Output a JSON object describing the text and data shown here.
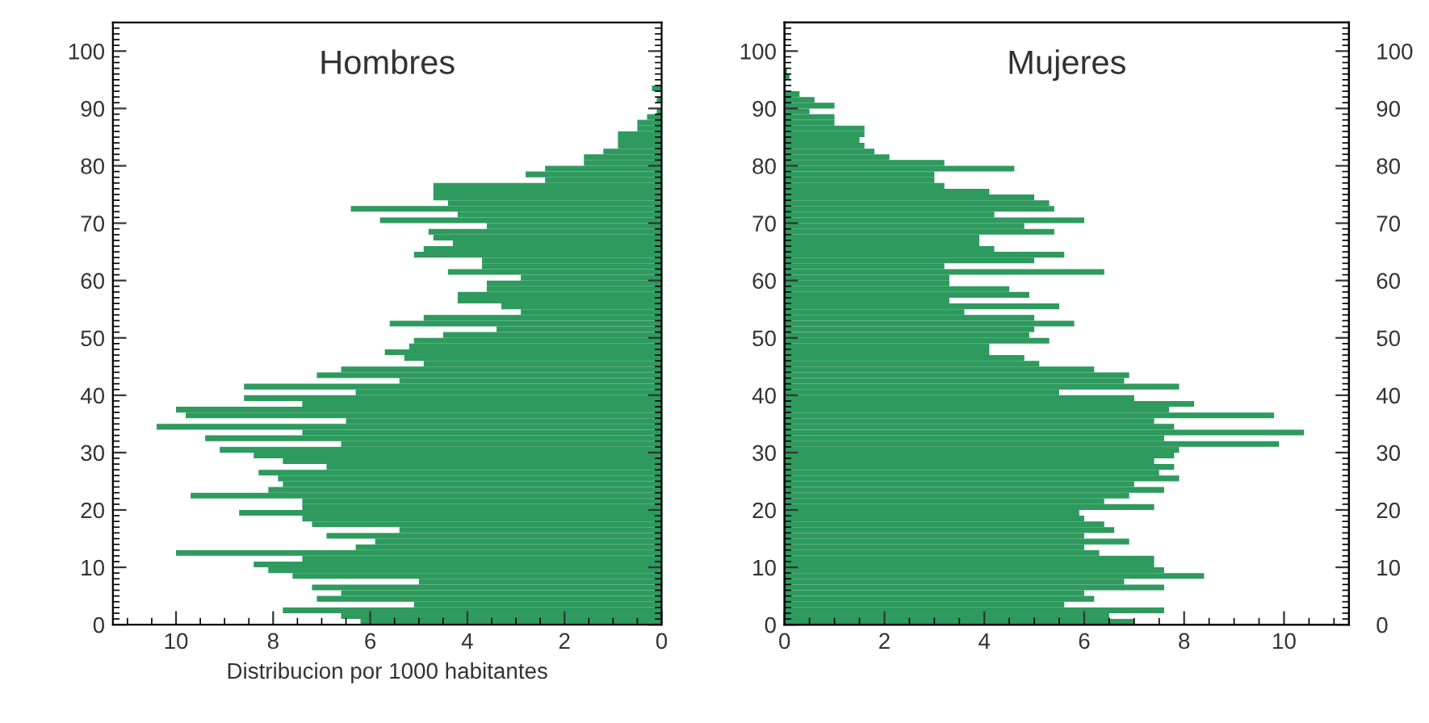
{
  "chart_data": [
    {
      "type": "histogram",
      "orientation": "horizontal",
      "title": "Hombres",
      "xlabel": "Distribucion por 1000 habitantes",
      "color": "#2e9a5e",
      "bins": [
        0,
        1,
        2,
        3,
        4,
        5,
        6,
        7,
        8,
        9,
        10,
        11,
        12,
        13,
        14,
        15,
        16,
        17,
        18,
        19,
        20,
        21,
        22,
        23,
        24,
        25,
        26,
        27,
        28,
        29,
        30,
        31,
        32,
        33,
        34,
        35,
        36,
        37,
        38,
        39,
        40,
        41,
        42,
        43,
        44,
        45,
        46,
        47,
        48,
        49,
        50,
        51,
        52,
        53,
        54,
        55,
        56,
        57,
        58,
        59,
        60,
        61,
        62,
        63,
        64,
        65,
        66,
        67,
        68,
        69,
        70,
        71,
        72,
        73,
        74,
        75,
        76,
        77,
        78,
        79,
        80,
        81,
        82,
        83,
        84,
        85,
        86,
        87,
        88,
        89,
        90,
        91,
        92,
        93,
        94,
        95,
        96,
        97
      ],
      "values": [
        6.2,
        6.6,
        7.8,
        5.1,
        7.1,
        6.6,
        7.2,
        5.0,
        7.6,
        8.1,
        8.4,
        7.4,
        10.0,
        6.3,
        5.9,
        6.9,
        5.4,
        7.2,
        7.4,
        8.7,
        7.4,
        7.4,
        9.7,
        8.1,
        7.8,
        7.9,
        8.3,
        6.9,
        7.8,
        8.4,
        9.1,
        6.6,
        9.4,
        7.4,
        10.4,
        6.5,
        9.8,
        10.0,
        7.4,
        8.6,
        6.3,
        8.6,
        5.4,
        7.1,
        6.6,
        4.9,
        5.3,
        5.7,
        5.2,
        5.1,
        4.5,
        3.4,
        5.6,
        4.9,
        2.9,
        3.3,
        4.2,
        4.2,
        3.6,
        3.6,
        2.9,
        4.4,
        3.7,
        3.7,
        5.1,
        4.9,
        4.3,
        4.7,
        4.8,
        3.6,
        5.8,
        4.2,
        6.4,
        4.4,
        4.7,
        4.7,
        4.7,
        2.4,
        2.8,
        2.4,
        1.6,
        1.6,
        1.2,
        0.9,
        0.9,
        0.9,
        0.5,
        0.5,
        0.3,
        0.1,
        null,
        0.1,
        null,
        0.2,
        0,
        0,
        0
      ],
      "xlim": [
        11.3,
        0
      ],
      "xticks": [
        10,
        8,
        6,
        4,
        2,
        0
      ],
      "ylim": [
        0,
        105
      ],
      "yticks": [
        0,
        10,
        20,
        30,
        40,
        50,
        60,
        70,
        80,
        90,
        100
      ]
    },
    {
      "type": "histogram",
      "orientation": "horizontal",
      "title": "Mujeres",
      "color": "#2e9a5e",
      "bins": [
        0,
        1,
        2,
        3,
        4,
        5,
        6,
        7,
        8,
        9,
        10,
        11,
        12,
        13,
        14,
        15,
        16,
        17,
        18,
        19,
        20,
        21,
        22,
        23,
        24,
        25,
        26,
        27,
        28,
        29,
        30,
        31,
        32,
        33,
        34,
        35,
        36,
        37,
        38,
        39,
        40,
        41,
        42,
        43,
        44,
        45,
        46,
        47,
        48,
        49,
        50,
        51,
        52,
        53,
        54,
        55,
        56,
        57,
        58,
        59,
        60,
        61,
        62,
        63,
        64,
        65,
        66,
        67,
        68,
        69,
        70,
        71,
        72,
        73,
        74,
        75,
        76,
        77,
        78,
        79,
        80,
        81,
        82,
        83,
        84,
        85,
        86,
        87,
        88,
        89,
        90,
        91,
        92,
        93,
        94,
        95,
        96,
        97
      ],
      "values": [
        7.0,
        6.5,
        7.6,
        5.6,
        6.2,
        6.0,
        7.6,
        6.8,
        8.4,
        7.6,
        7.4,
        7.4,
        6.3,
        6.0,
        6.9,
        6.0,
        6.6,
        6.4,
        6.0,
        5.9,
        7.4,
        6.4,
        6.9,
        7.6,
        7.0,
        7.9,
        7.5,
        7.8,
        7.4,
        7.8,
        7.9,
        9.9,
        7.6,
        10.4,
        7.8,
        7.4,
        9.8,
        7.7,
        8.2,
        7.0,
        5.5,
        7.9,
        6.8,
        6.9,
        6.2,
        5.1,
        4.8,
        4.1,
        4.1,
        5.3,
        4.9,
        5.0,
        5.8,
        5.0,
        3.6,
        5.5,
        3.3,
        4.9,
        4.5,
        3.3,
        3.3,
        6.4,
        3.2,
        5.0,
        5.6,
        4.2,
        3.9,
        3.9,
        5.4,
        4.8,
        6.0,
        4.2,
        5.4,
        5.3,
        5.0,
        4.1,
        3.2,
        3.0,
        3.0,
        4.6,
        3.2,
        2.1,
        1.8,
        1.6,
        1.5,
        1.6,
        1.6,
        1.0,
        1.0,
        0.5,
        1.0,
        0.6,
        0.3,
        null,
        null,
        0.1,
        0.05
      ],
      "xlim": [
        0,
        11.3
      ],
      "xticks": [
        0,
        2,
        4,
        6,
        8,
        10
      ],
      "ylim": [
        0,
        105
      ],
      "yticks": [
        0,
        10,
        20,
        30,
        40,
        50,
        60,
        70,
        80,
        90,
        100
      ],
      "y2lim": [
        0,
        105
      ],
      "y2ticks": [
        0,
        10,
        20,
        30,
        40,
        50,
        60,
        70,
        80,
        90,
        100
      ]
    }
  ]
}
